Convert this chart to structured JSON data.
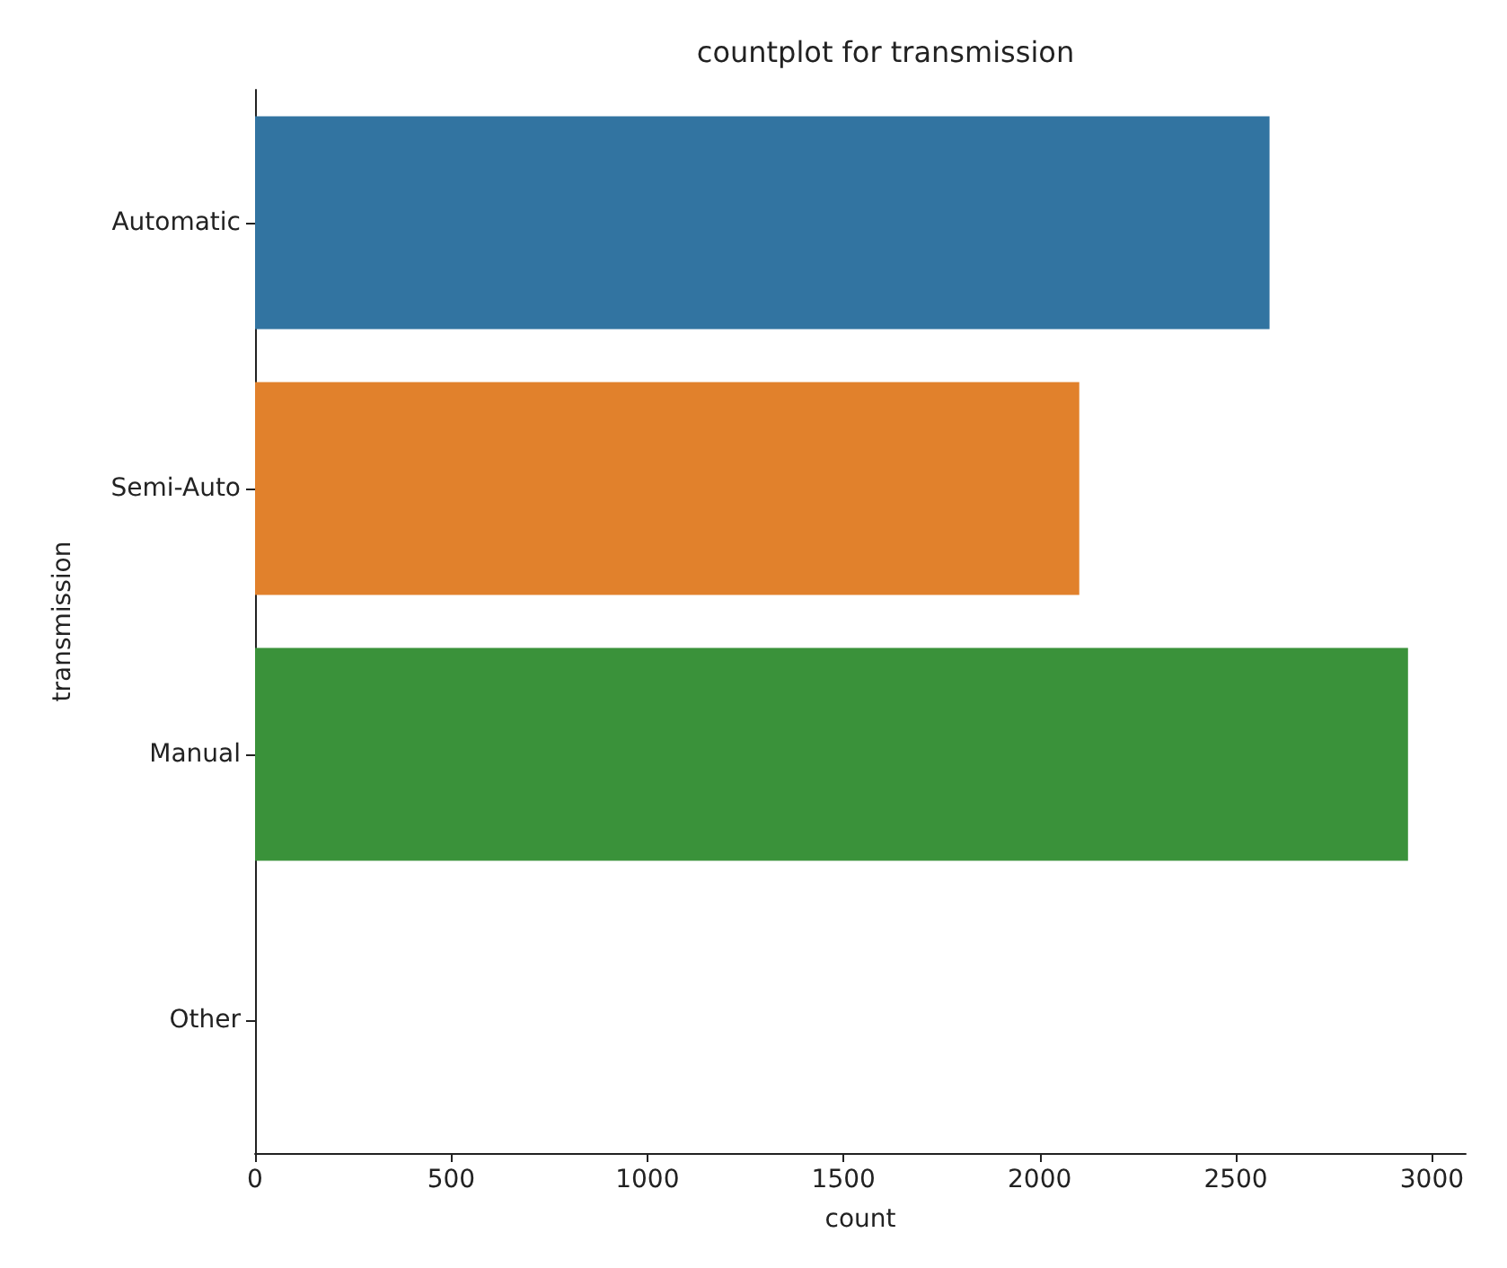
{
  "chart_data": {
    "type": "bar",
    "orientation": "horizontal",
    "title": "countplot for transmission",
    "xlabel": "count",
    "ylabel": "transmission",
    "categories": [
      "Automatic",
      "Semi-Auto",
      "Manual",
      "Other"
    ],
    "values": [
      2586,
      2101,
      2939,
      0
    ],
    "colors": [
      "#3274a1",
      "#e1812c",
      "#3a923a",
      "#c03d3e"
    ],
    "xlim": [
      0,
      3086
    ],
    "xticks": [
      0,
      500,
      1000,
      1500,
      2000,
      2500,
      3000
    ],
    "grid": false
  }
}
